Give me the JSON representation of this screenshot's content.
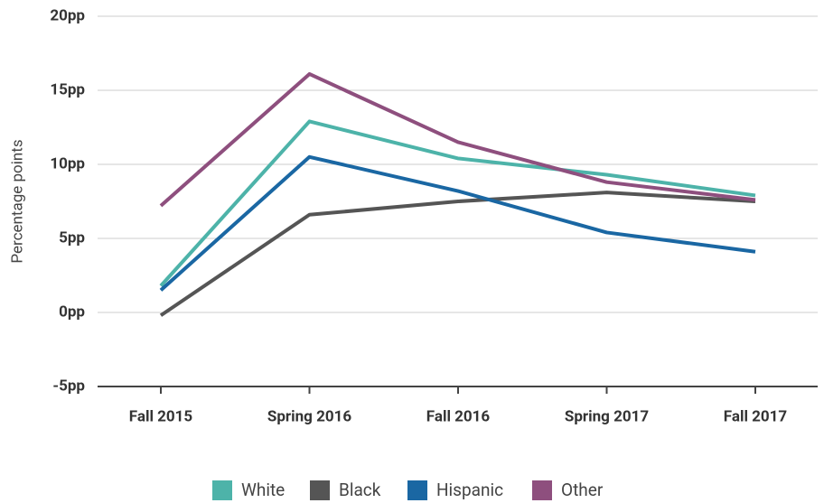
{
  "chart_data": {
    "type": "line",
    "y_label": "Percentage points",
    "categories": [
      "Fall 2015",
      "Spring 2016",
      "Fall 2016",
      "Spring 2017",
      "Fall 2017"
    ],
    "series": [
      {
        "name": "White",
        "color": "#4db3a9",
        "values": [
          1.8,
          12.9,
          10.4,
          9.3,
          7.9
        ]
      },
      {
        "name": "Black",
        "color": "#555555",
        "values": [
          -0.2,
          6.6,
          7.5,
          8.1,
          7.5
        ]
      },
      {
        "name": "Hispanic",
        "color": "#1a67a3",
        "values": [
          1.5,
          10.5,
          8.2,
          5.4,
          4.1
        ]
      },
      {
        "name": "Other",
        "color": "#8e4f7e",
        "values": [
          7.2,
          16.1,
          11.5,
          8.8,
          7.6
        ]
      }
    ],
    "ylim": [
      -5,
      20
    ],
    "yticks": [
      {
        "value": -5,
        "label": "-5pp"
      },
      {
        "value": 0,
        "label": "0pp"
      },
      {
        "value": 5,
        "label": "5pp"
      },
      {
        "value": 10,
        "label": "10pp"
      },
      {
        "value": 15,
        "label": "15pp"
      },
      {
        "value": 20,
        "label": "20pp"
      }
    ],
    "grid": true,
    "legend": "bottom"
  }
}
